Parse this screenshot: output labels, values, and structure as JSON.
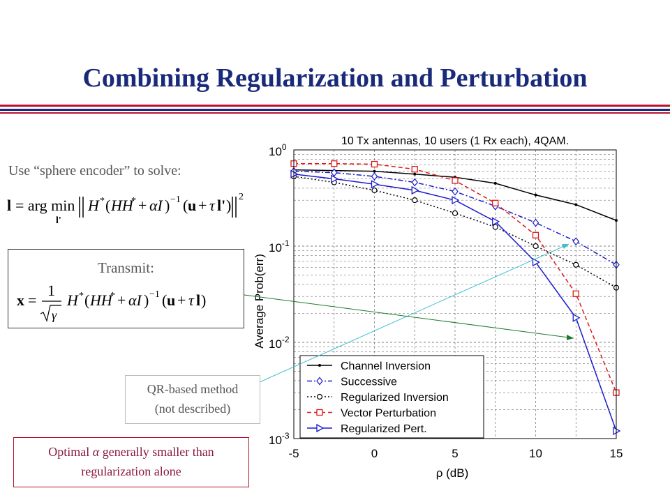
{
  "slide": {
    "title": "Combining Regularization and Perturbation",
    "sphere_text": "Use “sphere encoder” to solve:",
    "transmit_label": "Transmit:",
    "qr_line1": "QR-based method",
    "qr_line2": "(not described)",
    "optimal_prefix": "Optimal",
    "optimal_alpha": "α",
    "optimal_suffix": "generally smaller than",
    "optimal_line2": "regularization alone",
    "colors": {
      "title": "#1a2a7a",
      "rule_red": "#b8122a",
      "rule_blue": "#1a2a7a",
      "callout_arrow_cyan": "#3cc0d0",
      "callout_arrow_green": "#1a7a2a"
    }
  },
  "chart_data": {
    "type": "line",
    "title": "10 Tx antennas, 10 users (1 Rx each), 4QAM.",
    "xlabel": "ρ (dB)",
    "ylabel": "Average Prob(err)",
    "xlim": [
      -5,
      15
    ],
    "ylim": [
      0.001,
      1
    ],
    "yscale": "log",
    "x_ticks": [
      "-5",
      "0",
      "5",
      "10",
      "15"
    ],
    "y_ticks": [
      "10^0",
      "10^-1",
      "10^-2",
      "10^-3"
    ],
    "grid": true,
    "legend_position": "bottom-left",
    "x": [
      -5,
      -2.5,
      0,
      2.5,
      5,
      7.5,
      10,
      12.5,
      15
    ],
    "series": [
      {
        "name": "Channel Inversion",
        "color": "#000000",
        "dash": "solid",
        "marker": "dot",
        "values": [
          0.62,
          0.61,
          0.6,
          0.56,
          0.52,
          0.45,
          0.34,
          0.27,
          0.185
        ]
      },
      {
        "name": "Successive",
        "color": "#1a1acc",
        "dash": "dashdot",
        "marker": "diamond",
        "values": [
          0.6,
          0.58,
          0.53,
          0.46,
          0.37,
          0.26,
          0.175,
          0.112,
          0.064
        ]
      },
      {
        "name": "Regularized Inversion",
        "color": "#000000",
        "dash": "dotted",
        "marker": "circle",
        "values": [
          0.53,
          0.46,
          0.38,
          0.3,
          0.22,
          0.158,
          0.1,
          0.064,
          0.037
        ]
      },
      {
        "name": "Vector Perturbation",
        "color": "#dd1a1a",
        "dash": "dashed",
        "marker": "square",
        "values": [
          0.72,
          0.72,
          0.71,
          0.63,
          0.48,
          0.28,
          0.13,
          0.032,
          0.003
        ]
      },
      {
        "name": "Regularized Pert.",
        "color": "#1a1acc",
        "dash": "solid",
        "marker": "triangle-right",
        "values": [
          0.56,
          0.5,
          0.44,
          0.38,
          0.3,
          0.18,
          0.068,
          0.018,
          0.0012
        ]
      }
    ]
  }
}
